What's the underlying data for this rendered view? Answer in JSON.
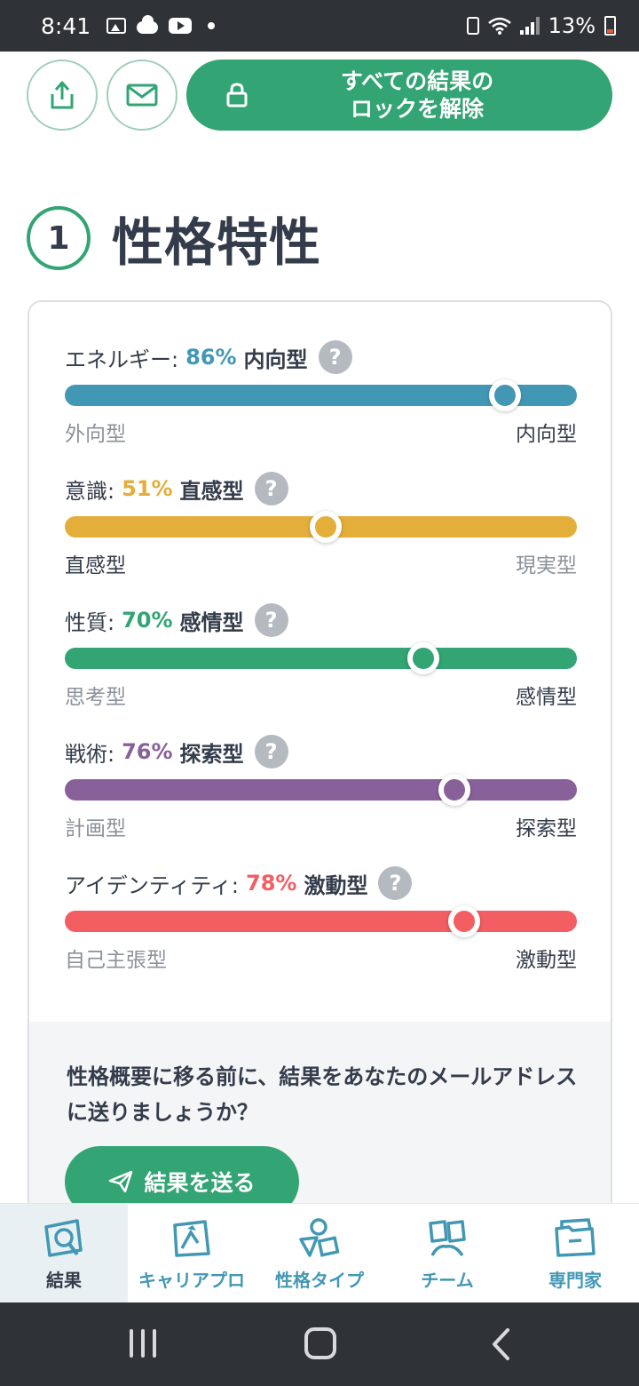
{
  "status_bar": {
    "time": "8:41",
    "battery": "13%"
  },
  "header": {
    "unlock_label": "すべての結果の\nロックを解除",
    "icons": [
      "share-icon",
      "mail-icon",
      "lock-icon"
    ]
  },
  "section": {
    "number": "1",
    "title": "性格特性"
  },
  "traits": [
    {
      "label": "エネルギー:",
      "percent": "86%",
      "type": "内向型",
      "left": "外向型",
      "right": "内向型",
      "active_side": "right",
      "value": 0.86,
      "color": "#4298b4"
    },
    {
      "label": "意識:",
      "percent": "51%",
      "type": "直感型",
      "left": "直感型",
      "right": "現実型",
      "active_side": "left",
      "value": 0.51,
      "color": "#e4ae3a"
    },
    {
      "label": "性質:",
      "percent": "70%",
      "type": "感情型",
      "left": "思考型",
      "right": "感情型",
      "active_side": "right",
      "value": 0.7,
      "color": "#33a474"
    },
    {
      "label": "戦術:",
      "percent": "76%",
      "type": "探索型",
      "left": "計画型",
      "right": "探索型",
      "active_side": "right",
      "value": 0.76,
      "color": "#88619a"
    },
    {
      "label": "アイデンティティ:",
      "percent": "78%",
      "type": "激動型",
      "left": "自己主張型",
      "right": "激動型",
      "active_side": "right",
      "value": 0.78,
      "color": "#f25e62"
    }
  ],
  "help_symbol": "?",
  "email_prompt": "性格概要に移る前に、結果をあなたのメールアドレスに送りましょうか？",
  "send_button": "結果を送る",
  "bottom_nav": [
    {
      "label": "結果",
      "icon": "magnifier-icon",
      "active": true
    },
    {
      "label": "キャリアプロ",
      "icon": "map-icon",
      "active": false
    },
    {
      "label": "性格タイプ",
      "icon": "shapes-icon",
      "active": false
    },
    {
      "label": "チーム",
      "icon": "team-icon",
      "active": false
    },
    {
      "label": "専門家",
      "icon": "folder-icon",
      "active": false
    }
  ],
  "colors": {
    "accent": "#33a474",
    "nav_blue": "#4298b4",
    "dark_text": "#343c4b"
  }
}
